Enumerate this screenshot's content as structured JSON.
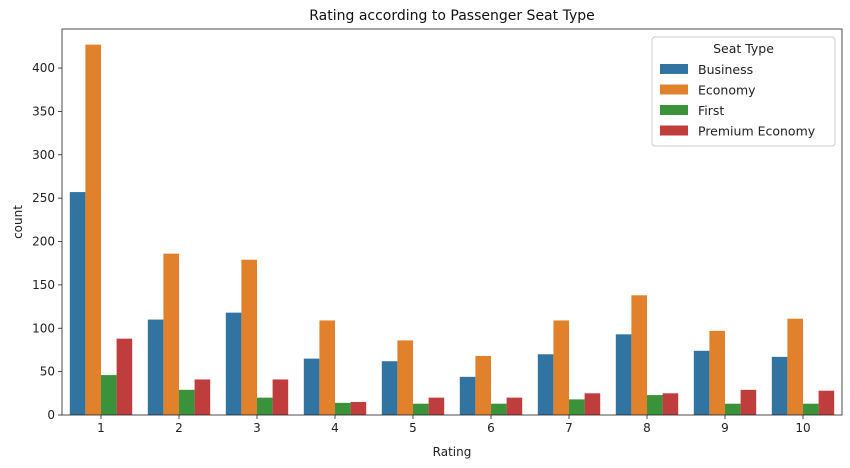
{
  "chart_data": {
    "type": "bar",
    "title": "Rating according to Passenger Seat Type",
    "xlabel": "Rating",
    "ylabel": "count",
    "categories": [
      "1",
      "2",
      "3",
      "4",
      "5",
      "6",
      "7",
      "8",
      "9",
      "10"
    ],
    "ylim": [
      0,
      445
    ],
    "yticks": [
      0,
      50,
      100,
      150,
      200,
      250,
      300,
      350,
      400
    ],
    "grid": false,
    "legend": {
      "title": "Seat Type",
      "placement": "top-right"
    },
    "series": [
      {
        "name": "Business",
        "color": "#3274a1",
        "values": [
          257,
          110,
          118,
          65,
          62,
          44,
          70,
          93,
          74,
          67
        ]
      },
      {
        "name": "Economy",
        "color": "#e1812c",
        "values": [
          427,
          186,
          179,
          109,
          86,
          68,
          109,
          138,
          97,
          111
        ]
      },
      {
        "name": "First",
        "color": "#3a923a",
        "values": [
          46,
          29,
          20,
          14,
          13,
          13,
          18,
          23,
          13,
          13
        ]
      },
      {
        "name": "Premium Economy",
        "color": "#c03d3e",
        "values": [
          88,
          41,
          41,
          15,
          20,
          20,
          25,
          25,
          29,
          28
        ]
      }
    ]
  }
}
